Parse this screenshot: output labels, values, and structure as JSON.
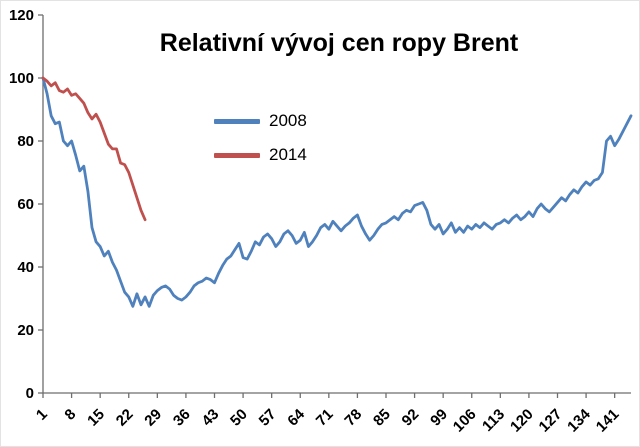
{
  "figure": {
    "background": "#ffffff",
    "border_color": "#e3e3e3"
  },
  "chart_data": {
    "type": "line",
    "title": "Relativní vývoj cen ropy Brent",
    "xlabel": "",
    "ylabel": "",
    "grid": false,
    "legend_position": "inside-upper-left",
    "axis_color": "#6e6e6e",
    "tick_label_color": "#000000",
    "xlim": [
      1,
      145
    ],
    "ylim": [
      0,
      120
    ],
    "x_start": 1,
    "x_ticks": [
      1,
      8,
      15,
      22,
      29,
      36,
      43,
      50,
      57,
      64,
      71,
      78,
      85,
      92,
      99,
      106,
      113,
      120,
      127,
      134,
      141
    ],
    "y_ticks": [
      0,
      20,
      40,
      60,
      80,
      100,
      120
    ],
    "series": [
      {
        "name": "2008",
        "color": "#4F81BD",
        "width": 2.8,
        "values": [
          100,
          95,
          88,
          85.5,
          86,
          80,
          78.5,
          80,
          75.5,
          70.5,
          72,
          64,
          52.5,
          48,
          46.5,
          43.5,
          45,
          41.5,
          39,
          35.5,
          32,
          30.5,
          27.5,
          31.5,
          28,
          30.5,
          27.5,
          31,
          32.5,
          33.5,
          34,
          33,
          31,
          30,
          29.5,
          30.5,
          32,
          34,
          35,
          35.5,
          36.5,
          36,
          35,
          38,
          40.5,
          42.5,
          43.5,
          45.5,
          47.5,
          43,
          42.5,
          45,
          48,
          47,
          49.5,
          50.5,
          49,
          46.5,
          48,
          50.5,
          51.5,
          50,
          47.5,
          48.5,
          51,
          46.5,
          48,
          50,
          52.5,
          53.5,
          52,
          54.5,
          53,
          51.5,
          53,
          54,
          55.5,
          56.5,
          53,
          50.5,
          48.5,
          50,
          52,
          53.5,
          54,
          55,
          56,
          55,
          57,
          58,
          57.5,
          59.5,
          60,
          60.5,
          58,
          53.5,
          52,
          53.5,
          50.5,
          52,
          54,
          51,
          52.5,
          51,
          53,
          52,
          53.5,
          52.5,
          54,
          53,
          52,
          53.5,
          54,
          55,
          54,
          55.5,
          56.5,
          55,
          56,
          57.5,
          56,
          58.5,
          60,
          58.5,
          57.5,
          59,
          60.5,
          62,
          61,
          63,
          64.5,
          63.5,
          65.5,
          67,
          66,
          67.5,
          68,
          70,
          80,
          81.5,
          78.5,
          80.5,
          83,
          85.5,
          88
        ]
      },
      {
        "name": "2014",
        "color": "#C0504D",
        "width": 2.8,
        "values": [
          100,
          99,
          97.5,
          98.5,
          96,
          95.5,
          96.5,
          94.5,
          95,
          93.5,
          92,
          89,
          87,
          88.5,
          86,
          82.5,
          79,
          77.5,
          77.5,
          73,
          72.5,
          70,
          66,
          62,
          58,
          55
        ]
      }
    ]
  }
}
